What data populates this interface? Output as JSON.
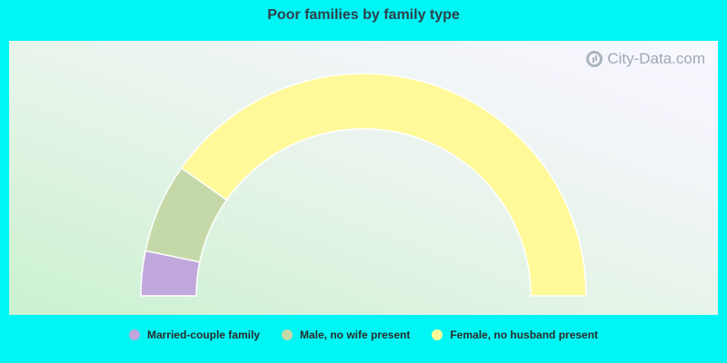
{
  "title": "Poor families by family type",
  "watermark": "City-Data.com",
  "chart_data": {
    "type": "pie",
    "subtype": "half-donut",
    "title": "Poor families by family type",
    "categories": [
      "Married-couple family",
      "Male, no wife present",
      "Female, no husband present"
    ],
    "values": [
      6.5,
      13.0,
      80.5
    ],
    "unit": "percent",
    "colors": [
      "#c0a8dc",
      "#c5d9a8",
      "#fff99a"
    ],
    "legend_position": "bottom"
  }
}
